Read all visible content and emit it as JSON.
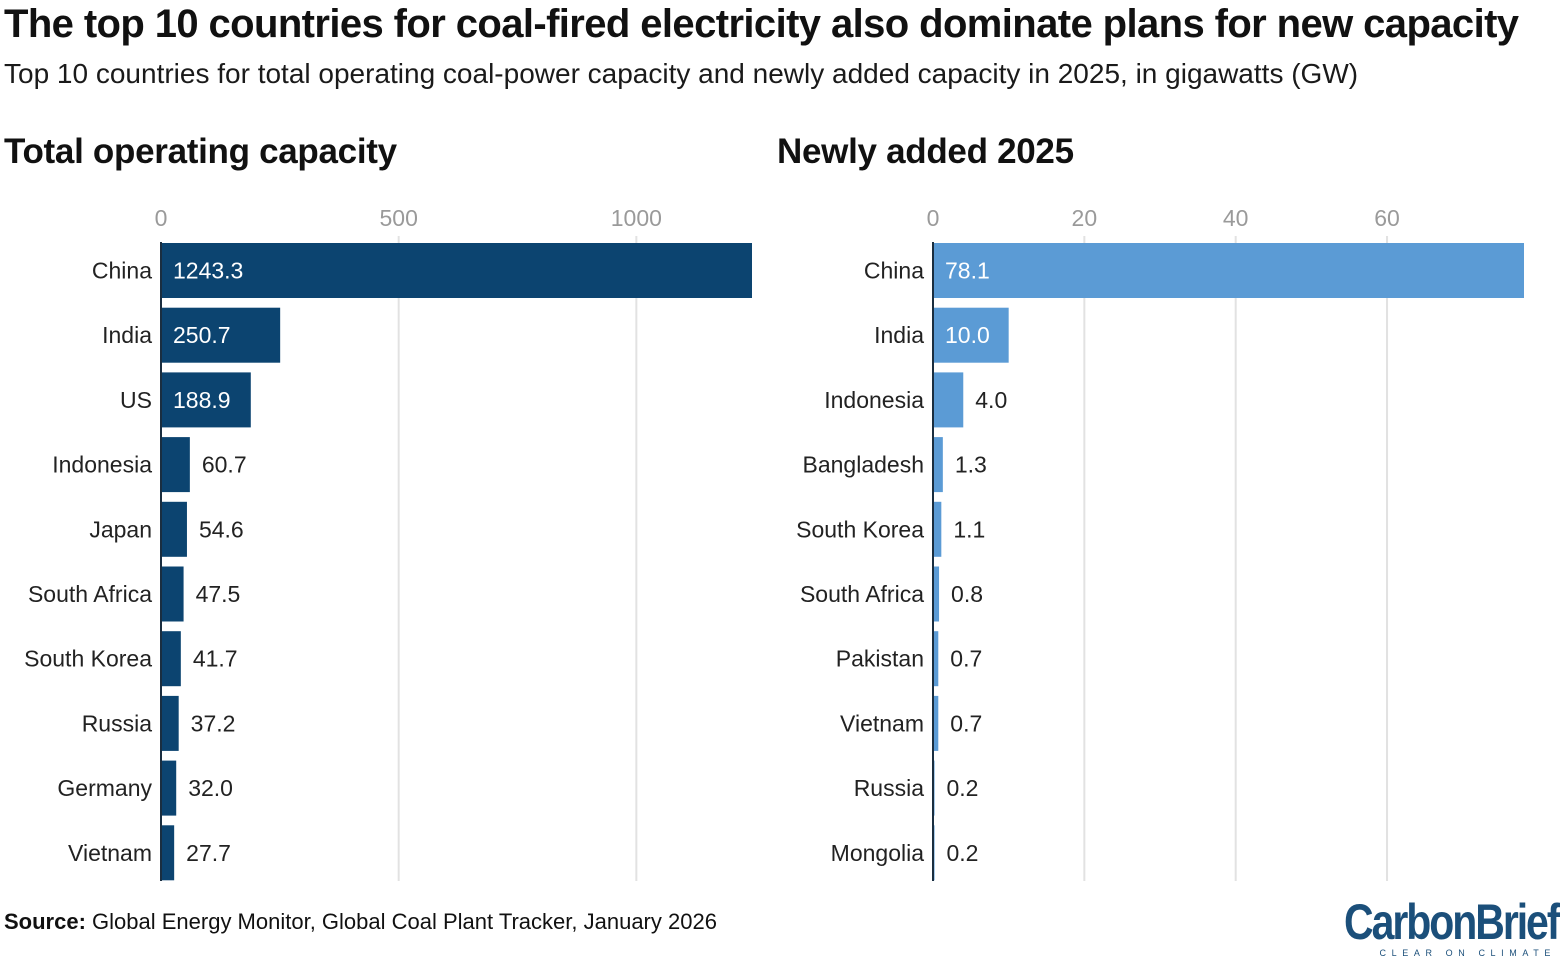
{
  "header": {
    "title": "The top 10 countries for coal-fired electricity also dominate plans for new capacity",
    "subtitle": "Top 10 countries for total operating coal-power capacity and newly added capacity in 2025, in gigawatts (GW)"
  },
  "chart_data": [
    {
      "type": "bar",
      "orientation": "horizontal",
      "title": "Total operating capacity",
      "categories": [
        "China",
        "India",
        "US",
        "Indonesia",
        "Japan",
        "South Africa",
        "South Korea",
        "Russia",
        "Germany",
        "Vietnam"
      ],
      "values": [
        1243.3,
        250.7,
        188.9,
        60.7,
        54.6,
        47.5,
        41.7,
        37.2,
        32.0,
        27.7
      ],
      "value_labels": [
        "1243.3",
        "250.7",
        "188.9",
        "60.7",
        "54.6",
        "47.5",
        "41.7",
        "37.2",
        "32.0",
        "27.7"
      ],
      "xticks": [
        0,
        500,
        1000
      ],
      "xtick_labels": [
        "0",
        "500",
        "1000"
      ],
      "xlim": [
        0,
        1243.3
      ],
      "color": "#0c4470",
      "grid": true
    },
    {
      "type": "bar",
      "orientation": "horizontal",
      "title": "Newly added 2025",
      "categories": [
        "China",
        "India",
        "Indonesia",
        "Bangladesh",
        "South Korea",
        "South Africa",
        "Pakistan",
        "Vietnam",
        "Russia",
        "Mongolia"
      ],
      "values": [
        78.1,
        10.0,
        4.0,
        1.3,
        1.1,
        0.8,
        0.7,
        0.7,
        0.2,
        0.2
      ],
      "value_labels": [
        "78.1",
        "10.0",
        "4.0",
        "1.3",
        "1.1",
        "0.8",
        "0.7",
        "0.7",
        "0.2",
        "0.2"
      ],
      "xticks": [
        0,
        20,
        40,
        60
      ],
      "xtick_labels": [
        "0",
        "20",
        "40",
        "60"
      ],
      "xlim": [
        0,
        78.1
      ],
      "color": "#5b9bd5",
      "grid": true
    }
  ],
  "footer": {
    "source_label": "Source:",
    "source_text": " Global Energy Monitor, Global Coal Plant Tracker, January 2026",
    "logo_text": "CarbonBrief",
    "logo_tagline": "CLEAR ON CLIMATE"
  }
}
